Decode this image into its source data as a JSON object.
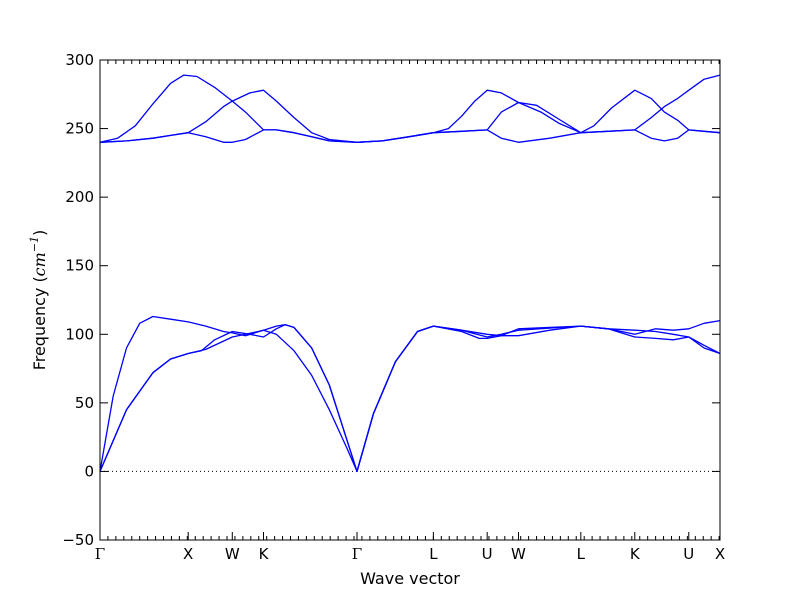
{
  "chart_data": {
    "type": "line",
    "title": "",
    "xlabel": "Wave vector",
    "ylabel": {
      "prefix": "Frequency (",
      "unit": "cm",
      "exponent": "−1",
      "suffix": ")"
    },
    "ylim": [
      -50,
      300
    ],
    "yticks": [
      -50,
      0,
      50,
      100,
      150,
      200,
      250,
      300
    ],
    "x_path": [
      {
        "label": "Γ",
        "x": 0.0
      },
      {
        "label": "X",
        "x": 1.0
      },
      {
        "label": "W",
        "x": 1.5
      },
      {
        "label": "K",
        "x": 1.854
      },
      {
        "label": "Γ",
        "x": 2.914
      },
      {
        "label": "L",
        "x": 3.78
      },
      {
        "label": "U",
        "x": 4.39
      },
      {
        "label": "W",
        "x": 4.745
      },
      {
        "label": "L",
        "x": 5.452
      },
      {
        "label": "K",
        "x": 6.064
      },
      {
        "label": "U",
        "x": 6.676
      },
      {
        "label": "X",
        "x": 7.03
      }
    ],
    "zero_line": {
      "y": 0,
      "style": "dotted"
    },
    "line_color": "#0000ff",
    "series": [
      {
        "points": [
          [
            0,
            0
          ],
          [
            0.3,
            45
          ],
          [
            0.6,
            72
          ],
          [
            0.8,
            82
          ],
          [
            1.0,
            86
          ],
          [
            1.2,
            89
          ],
          [
            1.4,
            95
          ],
          [
            1.5,
            98
          ],
          [
            1.65,
            100
          ],
          [
            1.854,
            103
          ],
          [
            2.0,
            100
          ],
          [
            2.2,
            88
          ],
          [
            2.4,
            70
          ],
          [
            2.6,
            45
          ],
          [
            2.8,
            17
          ],
          [
            2.914,
            0
          ],
          [
            3.1,
            42
          ],
          [
            3.35,
            80
          ],
          [
            3.6,
            102
          ],
          [
            3.78,
            106
          ],
          [
            4.1,
            103
          ],
          [
            4.39,
            98
          ],
          [
            4.55,
            100
          ],
          [
            4.745,
            103
          ],
          [
            5.1,
            104.5
          ],
          [
            5.452,
            106
          ],
          [
            5.76,
            104
          ],
          [
            6.064,
            98
          ],
          [
            6.3,
            97
          ],
          [
            6.5,
            96
          ],
          [
            6.676,
            98
          ],
          [
            6.85,
            90
          ],
          [
            7.03,
            86
          ]
        ]
      },
      {
        "points": [
          [
            0,
            0
          ],
          [
            0.3,
            45
          ],
          [
            0.6,
            72
          ],
          [
            0.8,
            82
          ],
          [
            1.0,
            86
          ],
          [
            1.15,
            88
          ],
          [
            1.3,
            96
          ],
          [
            1.5,
            102
          ],
          [
            1.7,
            100
          ],
          [
            1.854,
            98
          ],
          [
            2.0,
            104
          ],
          [
            2.1,
            107
          ],
          [
            2.2,
            105
          ],
          [
            2.4,
            90
          ],
          [
            2.6,
            63
          ],
          [
            2.8,
            23
          ],
          [
            2.914,
            0
          ],
          [
            3.1,
            42
          ],
          [
            3.35,
            80
          ],
          [
            3.6,
            102
          ],
          [
            3.78,
            106
          ],
          [
            4.1,
            103
          ],
          [
            4.39,
            100
          ],
          [
            4.55,
            99
          ],
          [
            4.745,
            99
          ],
          [
            5.1,
            103
          ],
          [
            5.452,
            106
          ],
          [
            5.76,
            104
          ],
          [
            6.064,
            103
          ],
          [
            6.3,
            102
          ],
          [
            6.5,
            100
          ],
          [
            6.676,
            98
          ],
          [
            6.85,
            92
          ],
          [
            7.03,
            86
          ]
        ]
      },
      {
        "points": [
          [
            0,
            0
          ],
          [
            0.15,
            55
          ],
          [
            0.3,
            90
          ],
          [
            0.45,
            108
          ],
          [
            0.6,
            113
          ],
          [
            0.8,
            111
          ],
          [
            1.0,
            109
          ],
          [
            1.2,
            106
          ],
          [
            1.4,
            102
          ],
          [
            1.5,
            101
          ],
          [
            1.65,
            99
          ],
          [
            1.854,
            103
          ],
          [
            2.0,
            106
          ],
          [
            2.1,
            107
          ],
          [
            2.2,
            105
          ],
          [
            2.4,
            90
          ],
          [
            2.6,
            63
          ],
          [
            2.8,
            23
          ],
          [
            2.914,
            0
          ],
          [
            3.1,
            42
          ],
          [
            3.35,
            80
          ],
          [
            3.6,
            102
          ],
          [
            3.78,
            106
          ],
          [
            4.1,
            102
          ],
          [
            4.3,
            97
          ],
          [
            4.39,
            97
          ],
          [
            4.55,
            99
          ],
          [
            4.745,
            104
          ],
          [
            5.1,
            105
          ],
          [
            5.452,
            106
          ],
          [
            5.76,
            104
          ],
          [
            6.064,
            100
          ],
          [
            6.3,
            104
          ],
          [
            6.5,
            103
          ],
          [
            6.676,
            104
          ],
          [
            6.85,
            108
          ],
          [
            7.03,
            110
          ]
        ]
      },
      {
        "points": [
          [
            0,
            240
          ],
          [
            0.3,
            241
          ],
          [
            0.6,
            243
          ],
          [
            0.8,
            245
          ],
          [
            1.0,
            247
          ],
          [
            1.2,
            244
          ],
          [
            1.4,
            240
          ],
          [
            1.5,
            240
          ],
          [
            1.65,
            242
          ],
          [
            1.854,
            249
          ],
          [
            2.0,
            249
          ],
          [
            2.2,
            247
          ],
          [
            2.4,
            244
          ],
          [
            2.6,
            241
          ],
          [
            2.914,
            240
          ],
          [
            3.2,
            241
          ],
          [
            3.5,
            244
          ],
          [
            3.78,
            247
          ],
          [
            4.1,
            248
          ],
          [
            4.39,
            249
          ],
          [
            4.55,
            243
          ],
          [
            4.745,
            240
          ],
          [
            5.1,
            243
          ],
          [
            5.452,
            247
          ],
          [
            5.76,
            248
          ],
          [
            6.064,
            249
          ],
          [
            6.25,
            243
          ],
          [
            6.4,
            241
          ],
          [
            6.55,
            243
          ],
          [
            6.676,
            249
          ],
          [
            6.85,
            248
          ],
          [
            7.03,
            247
          ]
        ]
      },
      {
        "points": [
          [
            0,
            240
          ],
          [
            0.3,
            241
          ],
          [
            0.6,
            243
          ],
          [
            0.8,
            245
          ],
          [
            1.0,
            247
          ],
          [
            1.2,
            255
          ],
          [
            1.4,
            266
          ],
          [
            1.5,
            270
          ],
          [
            1.65,
            262
          ],
          [
            1.854,
            249
          ],
          [
            2.0,
            249
          ],
          [
            2.2,
            247
          ],
          [
            2.4,
            244
          ],
          [
            2.6,
            241
          ],
          [
            2.914,
            240
          ],
          [
            3.2,
            241
          ],
          [
            3.5,
            244
          ],
          [
            3.78,
            247
          ],
          [
            4.1,
            248
          ],
          [
            4.39,
            249
          ],
          [
            4.55,
            262
          ],
          [
            4.745,
            269
          ],
          [
            5.0,
            262
          ],
          [
            5.2,
            254
          ],
          [
            5.452,
            247
          ],
          [
            5.76,
            248
          ],
          [
            6.064,
            249
          ],
          [
            6.25,
            258
          ],
          [
            6.4,
            266
          ],
          [
            6.55,
            272
          ],
          [
            6.676,
            278
          ],
          [
            6.85,
            286
          ],
          [
            7.03,
            289
          ]
        ]
      },
      {
        "points": [
          [
            0,
            240
          ],
          [
            0.2,
            243
          ],
          [
            0.4,
            252
          ],
          [
            0.6,
            268
          ],
          [
            0.8,
            283
          ],
          [
            0.95,
            289
          ],
          [
            1.1,
            288
          ],
          [
            1.3,
            280
          ],
          [
            1.5,
            270
          ],
          [
            1.7,
            276
          ],
          [
            1.854,
            278
          ],
          [
            2.0,
            270
          ],
          [
            2.2,
            258
          ],
          [
            2.4,
            247
          ],
          [
            2.6,
            242
          ],
          [
            2.914,
            240
          ],
          [
            3.2,
            241
          ],
          [
            3.5,
            244
          ],
          [
            3.78,
            247
          ],
          [
            3.95,
            250
          ],
          [
            4.1,
            259
          ],
          [
            4.25,
            270
          ],
          [
            4.39,
            278
          ],
          [
            4.55,
            276
          ],
          [
            4.745,
            269
          ],
          [
            4.95,
            267
          ],
          [
            5.2,
            257
          ],
          [
            5.452,
            247
          ],
          [
            5.6,
            252
          ],
          [
            5.8,
            265
          ],
          [
            6.064,
            278
          ],
          [
            6.25,
            272
          ],
          [
            6.4,
            262
          ],
          [
            6.55,
            256
          ],
          [
            6.676,
            249
          ],
          [
            6.85,
            248
          ],
          [
            7.03,
            247
          ]
        ]
      }
    ]
  }
}
